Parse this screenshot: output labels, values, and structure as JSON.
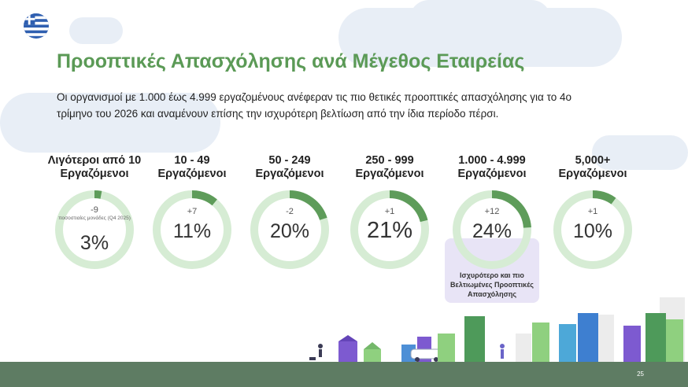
{
  "header": {
    "title": "Προοπτικές Απασχόλησης ανά Μέγεθος Εταιρείας",
    "subtitle": "Οι οργανισμοί με 1.000 έως 4.999 εργαζομένους ανέφεραν τις πιο θετικές προοπτικές απασχόλησης για το 4ο τρίμηνο του 2026 και αναμένουν επίσης την ισχυρότερη βελτίωση από την ίδια περίοδο πέρσι."
  },
  "colors": {
    "accent": "#5b9a56",
    "ring_bg": "#d6ecd4",
    "ring_fill": "#5e9c5a",
    "highlight": "#e8e4f6",
    "ground": "#5e7c63"
  },
  "flag_icon": "greece-flag-icon",
  "categories": [
    {
      "label": "Λιγότεροι από 10 Εργαζόμενοι",
      "change": "-9",
      "note": "ποσοστιαίες μονάδες (Q4 2025)",
      "value": "3%",
      "fraction": 0.03
    },
    {
      "label": "10 - 49 Εργαζόμενοι",
      "change": "+7",
      "value": "11%",
      "fraction": 0.11
    },
    {
      "label": "50 - 249 Εργαζόμενοι",
      "change": "-2",
      "value": "20%",
      "fraction": 0.2
    },
    {
      "label": "250 - 999 Εργαζόμενοι",
      "change": "+1",
      "value": "21%",
      "fraction": 0.21
    },
    {
      "label": "1.000 - 4.999 Εργαζόμενοι",
      "change": "+12",
      "value": "24%",
      "fraction": 0.24
    },
    {
      "label": "5,000+ Εργαζόμενοι",
      "change": "+1",
      "value": "10%",
      "fraction": 0.1
    }
  ],
  "highlight": {
    "text": "Ισχυρότερο και πιο Βελτιωμένες Προοπτικές Απασχόλησης"
  },
  "footer": {
    "page_number": "25"
  }
}
